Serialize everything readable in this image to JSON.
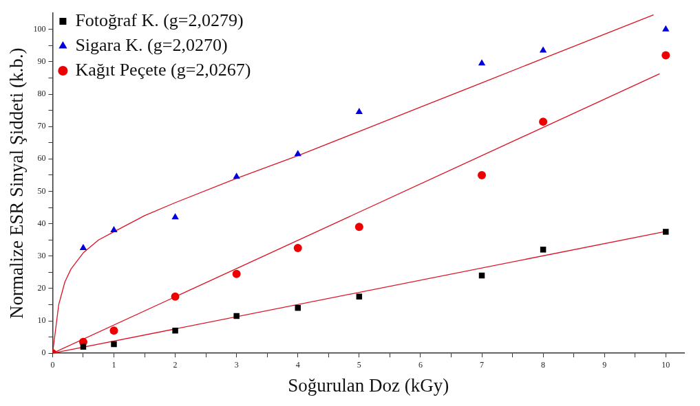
{
  "chart_data": {
    "type": "scatter",
    "xlabel": "Soğurulan Doz (kGy)",
    "ylabel": "Normalize ESR Sinyal Şiddeti (k.b.)",
    "xlim": [
      0,
      10.3
    ],
    "ylim": [
      0,
      105
    ],
    "xticks": [
      0,
      {
        "value": 0.5,
        "label": null
      },
      1,
      {
        "value": 1.5,
        "label": null
      },
      2,
      {
        "value": 2.5,
        "label": null
      },
      3,
      {
        "value": 3.5,
        "label": null
      },
      4,
      {
        "value": 4.5,
        "label": null
      },
      5,
      {
        "value": 5.5,
        "label": null
      },
      6,
      {
        "value": 6.5,
        "label": null
      },
      7,
      {
        "value": 7.5,
        "label": null
      },
      8,
      {
        "value": 8.5,
        "label": null
      },
      9,
      {
        "value": 9.5,
        "label": null
      },
      10
    ],
    "yticks": [
      0,
      {
        "value": 5,
        "label": null
      },
      10,
      {
        "value": 15,
        "label": null
      },
      20,
      {
        "value": 25,
        "label": null
      },
      30,
      {
        "value": 35,
        "label": null
      },
      40,
      {
        "value": 45,
        "label": null
      },
      50,
      {
        "value": 55,
        "label": null
      },
      60,
      {
        "value": 65,
        "label": null
      },
      70,
      {
        "value": 75,
        "label": null
      },
      80,
      {
        "value": 85,
        "label": null
      },
      90,
      {
        "value": 95,
        "label": null
      },
      100
    ],
    "grid": false,
    "legend": "top left",
    "series": [
      {
        "name": "Fotoğraf K. (g=2,0279)",
        "type": "scatter",
        "marker": "square",
        "color": "#000000",
        "x": [
          0.5,
          1,
          2,
          3,
          4,
          5,
          7,
          8,
          10
        ],
        "values": [
          2,
          2.8,
          7,
          11.5,
          14,
          17.5,
          24,
          32,
          37.5
        ]
      },
      {
        "name": "Sigara K. (g=2,0270)",
        "type": "scatter",
        "marker": "triangle",
        "color": "#0000dd",
        "x": [
          0.5,
          1,
          2,
          3,
          4,
          5,
          7,
          8,
          10
        ],
        "values": [
          32.5,
          38,
          42,
          54.5,
          61.5,
          74.5,
          89.5,
          93.5,
          100
        ]
      },
      {
        "name": "Kağıt Peçete (g=2,0267)",
        "type": "scatter",
        "marker": "circle",
        "color": "#ee0000",
        "x": [
          0,
          0.5,
          1,
          2,
          3,
          4,
          5,
          7,
          8,
          10
        ],
        "values": [
          0,
          3.5,
          7,
          17.5,
          24.5,
          32.5,
          39,
          55,
          71.5,
          92
        ]
      },
      {
        "type": "line",
        "marker": "none",
        "color": "#dd1122",
        "x": [
          0,
          10
        ],
        "values": [
          0,
          37.6
        ]
      },
      {
        "type": "line",
        "marker": "none",
        "color": "#dd1122",
        "x": [
          0,
          9.9
        ],
        "values": [
          0,
          86.3
        ]
      },
      {
        "type": "line",
        "marker": "none",
        "color": "#dd1122",
        "x": [
          0,
          0.1,
          0.2,
          0.3,
          0.5,
          0.75,
          1,
          1.5,
          2,
          3,
          4,
          5,
          6,
          7,
          8,
          9.8
        ],
        "values": [
          0,
          15,
          22,
          26,
          31,
          35,
          37.5,
          42.5,
          46.5,
          54,
          61,
          68.5,
          76,
          83.5,
          91,
          104.5
        ]
      }
    ]
  }
}
